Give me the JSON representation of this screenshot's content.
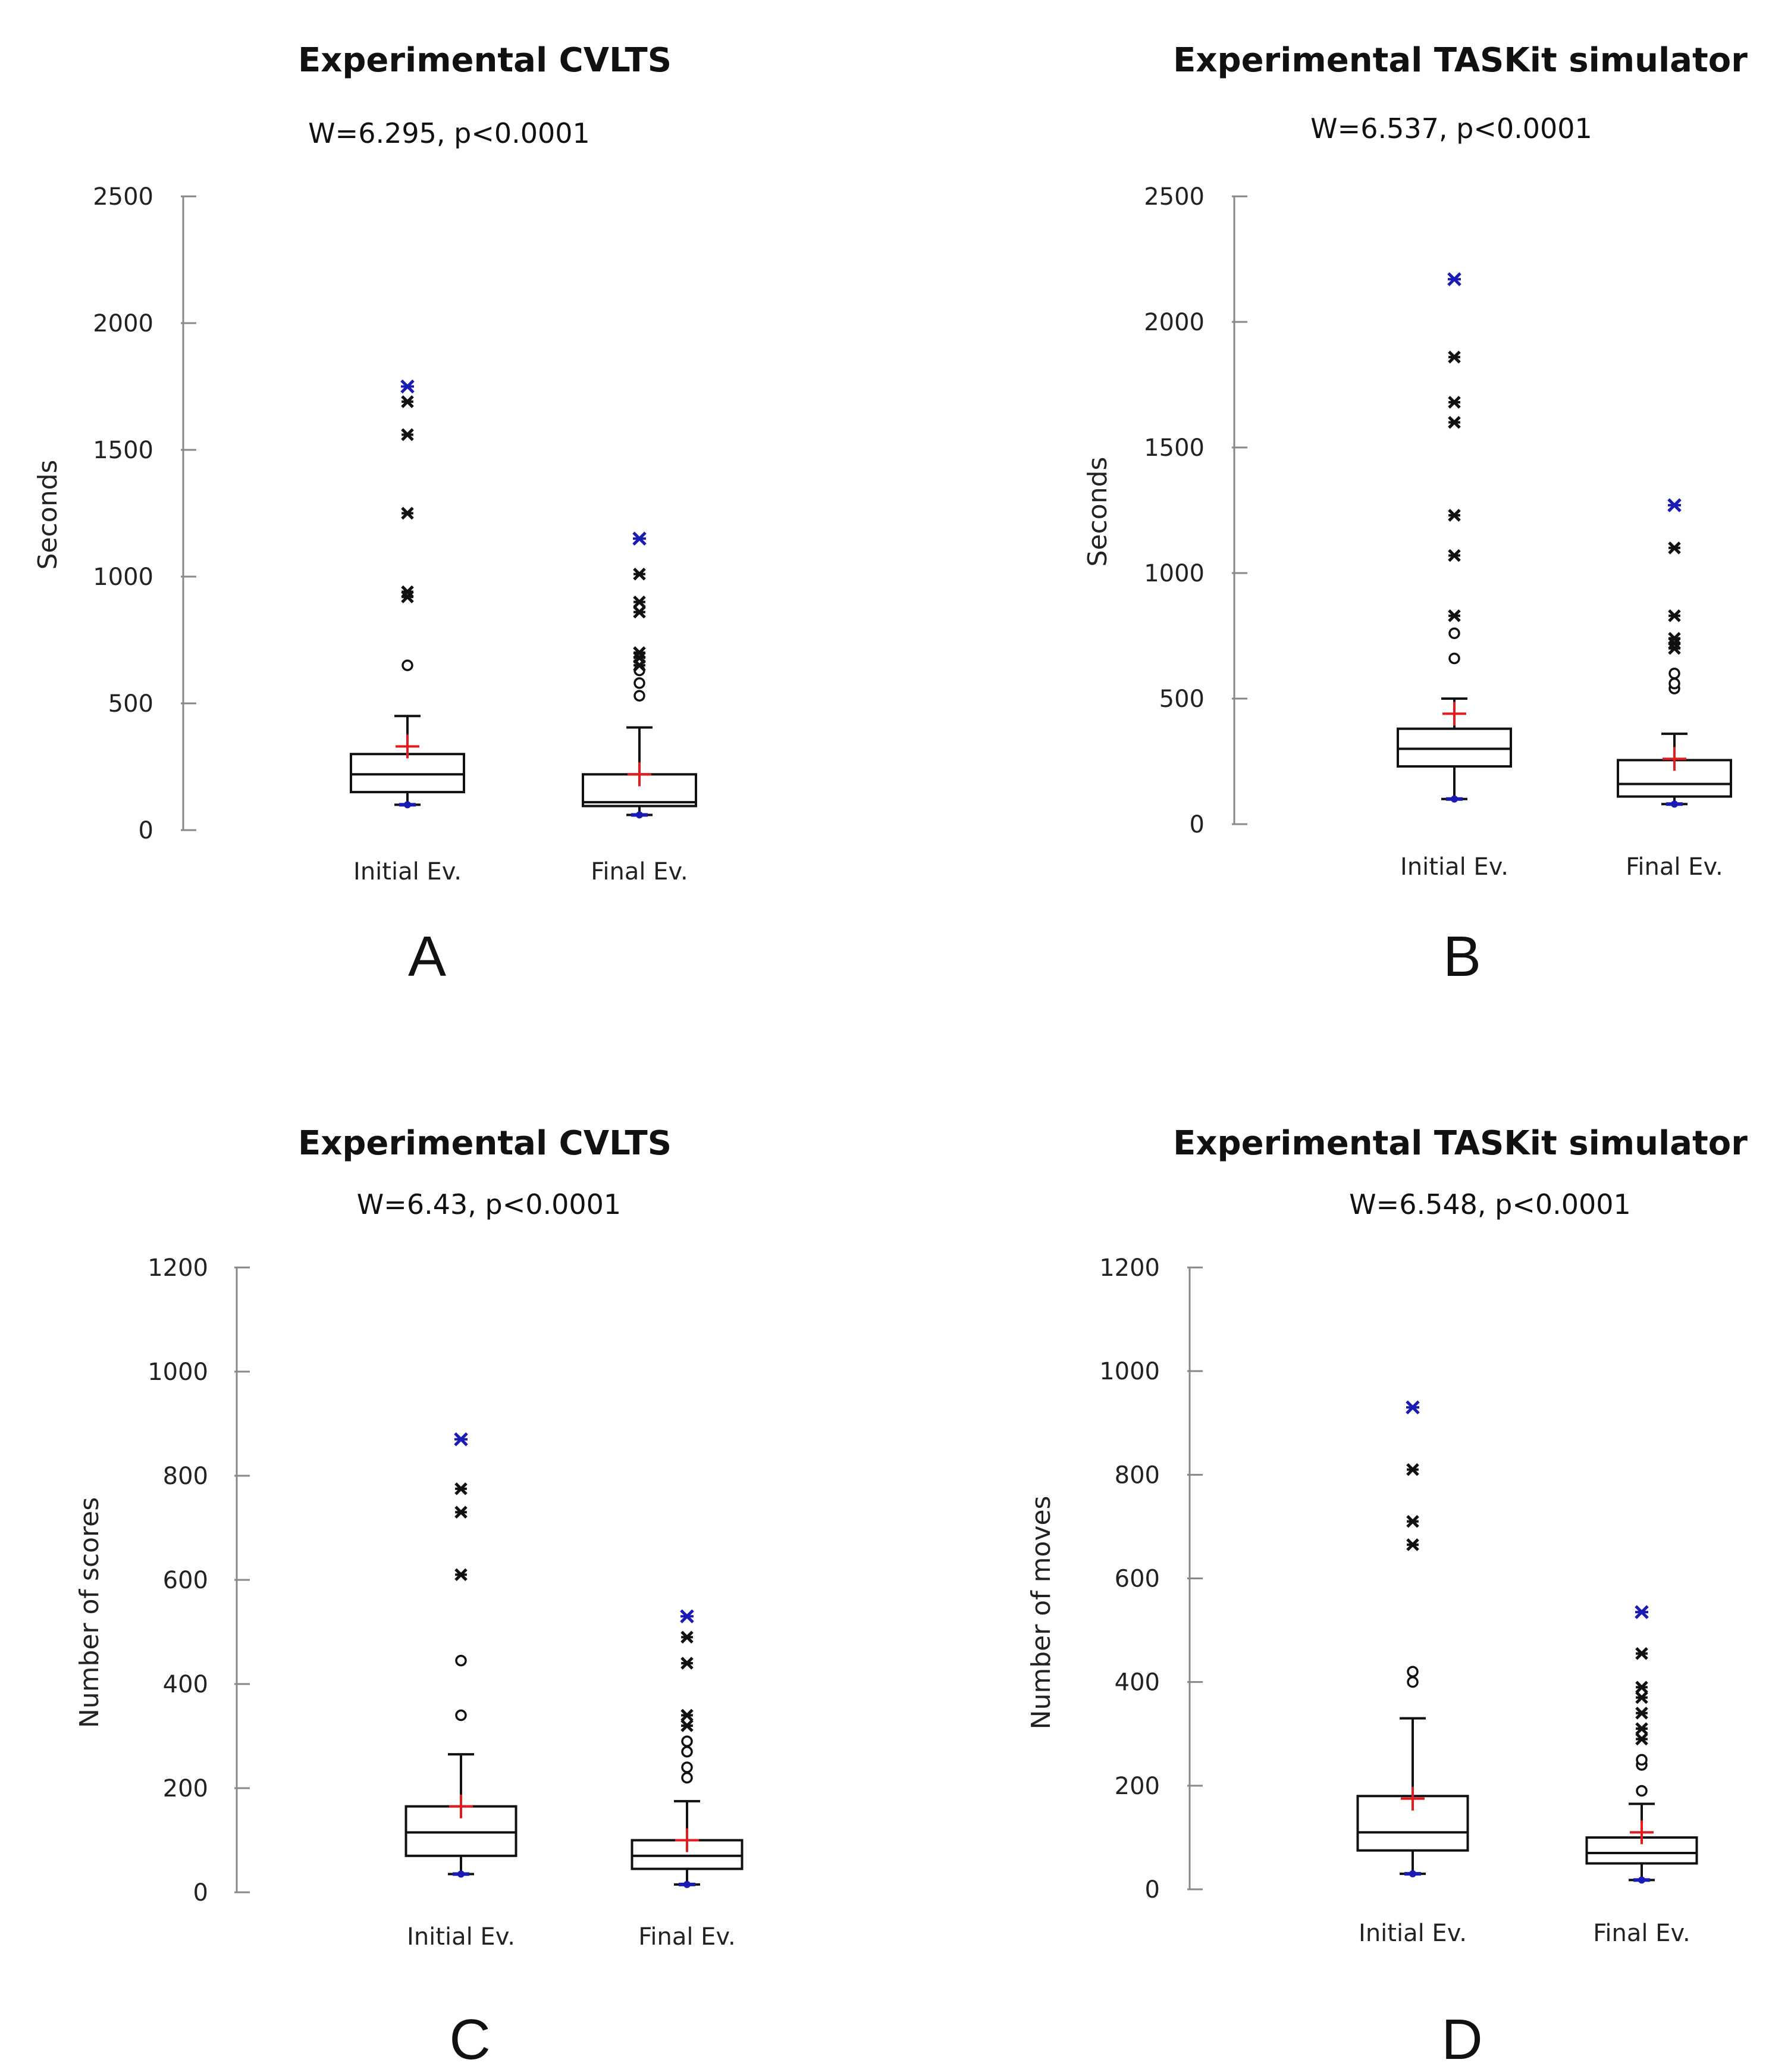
{
  "chart_data": [
    {
      "type": "box",
      "panel": "A",
      "title": "Experimental CVLTS",
      "subtitle": "W=6.295,  p<0.0001",
      "ylabel": "Seconds",
      "ylim": [
        0,
        2500
      ],
      "yticks": [
        0,
        500,
        1000,
        1500,
        2000,
        2500
      ],
      "categories": [
        "Initial Ev.",
        "Final Ev."
      ],
      "boxes": [
        {
          "min": 100,
          "q1": 150,
          "median": 220,
          "q3": 300,
          "whisker_high": 450,
          "mean": 330,
          "outliers": [
            650
          ],
          "extremes": [
            920,
            940,
            1250,
            1560,
            1690
          ],
          "max": 1750
        },
        {
          "min": 60,
          "q1": 95,
          "median": 110,
          "q3": 220,
          "whisker_high": 405,
          "mean": 220,
          "outliers": [
            530,
            580,
            630
          ],
          "extremes": [
            650,
            680,
            700,
            860,
            900,
            1010
          ],
          "max": 1150
        }
      ]
    },
    {
      "type": "box",
      "panel": "B",
      "title": "Experimental TASKit simulator",
      "subtitle": "W=6.537,  p<0.0001",
      "ylabel": "Seconds",
      "ylim": [
        0,
        2500
      ],
      "yticks": [
        0,
        500,
        1000,
        1500,
        2000,
        2500
      ],
      "categories": [
        "Initial Ev.",
        "Final Ev."
      ],
      "boxes": [
        {
          "min": 100,
          "q1": 230,
          "median": 300,
          "q3": 380,
          "whisker_high": 500,
          "mean": 440,
          "outliers": [
            660,
            760
          ],
          "extremes": [
            830,
            1070,
            1230,
            1600,
            1680,
            1860
          ],
          "max": 2170
        },
        {
          "min": 80,
          "q1": 110,
          "median": 160,
          "q3": 255,
          "whisker_high": 360,
          "mean": 260,
          "outliers": [
            540,
            560,
            600
          ],
          "extremes": [
            700,
            720,
            740,
            830,
            1100
          ],
          "max": 1270
        }
      ]
    },
    {
      "type": "box",
      "panel": "C",
      "title": "Experimental CVLTS",
      "subtitle": "W=6.43,  p<0.0001",
      "ylabel": "Number of scores",
      "ylim": [
        0,
        1200
      ],
      "yticks": [
        0,
        200,
        400,
        600,
        800,
        1000,
        1200
      ],
      "categories": [
        "Initial Ev.",
        "Final Ev."
      ],
      "boxes": [
        {
          "min": 35,
          "q1": 70,
          "median": 115,
          "q3": 165,
          "whisker_high": 265,
          "mean": 165,
          "outliers": [
            340,
            445
          ],
          "extremes": [
            610,
            730,
            775
          ],
          "max": 870
        },
        {
          "min": 15,
          "q1": 45,
          "median": 70,
          "q3": 100,
          "whisker_high": 175,
          "mean": 100,
          "outliers": [
            220,
            240,
            270,
            290
          ],
          "extremes": [
            320,
            340,
            440,
            490
          ],
          "max": 530
        }
      ]
    },
    {
      "type": "box",
      "panel": "D",
      "title": "Experimental TASKit simulator",
      "subtitle": "W=6.548,  p<0.0001",
      "ylabel": "Number of moves",
      "ylim": [
        0,
        1200
      ],
      "yticks": [
        0,
        200,
        400,
        600,
        800,
        1000,
        1200
      ],
      "categories": [
        "Initial Ev.",
        "Final Ev."
      ],
      "boxes": [
        {
          "min": 30,
          "q1": 75,
          "median": 110,
          "q3": 180,
          "whisker_high": 330,
          "mean": 175,
          "outliers": [
            400,
            420
          ],
          "extremes": [
            665,
            710,
            810
          ],
          "max": 930
        },
        {
          "min": 18,
          "q1": 50,
          "median": 70,
          "q3": 100,
          "whisker_high": 165,
          "mean": 110,
          "outliers": [
            190,
            240,
            250
          ],
          "extremes": [
            290,
            310,
            340,
            370,
            390,
            455
          ],
          "max": 535
        }
      ]
    }
  ],
  "colors": {
    "axis": "#888888",
    "box": "#111111",
    "mean": "#e41a1c",
    "minmax": "#1a1ab4",
    "outlier": "#111111"
  }
}
